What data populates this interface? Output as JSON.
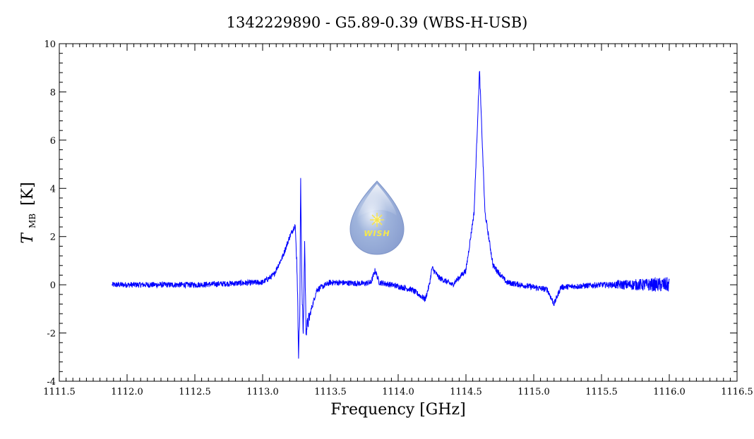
{
  "chart_data": {
    "type": "line",
    "title": "1342229890 - G5.89-0.39 (WBS-H-USB)",
    "xlabel": "Frequency [GHz]",
    "ylabel": {
      "symbol": "T",
      "subscript": "MB",
      "unit": "[K]"
    },
    "xlim": [
      1111.5,
      1116.5
    ],
    "ylim": [
      -4,
      10
    ],
    "x_ticks": [
      "1111.5",
      "1112.0",
      "1112.5",
      "1113.0",
      "1113.5",
      "1114.0",
      "1114.5",
      "1115.0",
      "1115.5",
      "1116.0",
      "1116.5"
    ],
    "y_ticks": [
      "-4",
      "-2",
      "0",
      "2",
      "4",
      "6",
      "8",
      "10"
    ],
    "grid": false,
    "series": [
      {
        "color": "#0000ff",
        "data_range": [
          1111.89,
          1116.0
        ],
        "points": [
          [
            1111.89,
            0.0
          ],
          [
            1112.5,
            0.0
          ],
          [
            1113.0,
            0.1
          ],
          [
            1113.08,
            0.4
          ],
          [
            1113.15,
            1.2
          ],
          [
            1113.2,
            2.0
          ],
          [
            1113.24,
            2.5
          ],
          [
            1113.255,
            0.5
          ],
          [
            1113.265,
            -2.8
          ],
          [
            1113.275,
            -1.0
          ],
          [
            1113.28,
            4.4
          ],
          [
            1113.29,
            0.0
          ],
          [
            1113.3,
            -2.2
          ],
          [
            1113.31,
            1.9
          ],
          [
            1113.32,
            -1.9
          ],
          [
            1113.36,
            -1.0
          ],
          [
            1113.4,
            -0.2
          ],
          [
            1113.5,
            0.1
          ],
          [
            1113.75,
            0.05
          ],
          [
            1113.8,
            0.1
          ],
          [
            1113.83,
            0.6
          ],
          [
            1113.86,
            0.1
          ],
          [
            1113.95,
            0.0
          ],
          [
            1114.1,
            -0.2
          ],
          [
            1114.2,
            -0.6
          ],
          [
            1114.23,
            0.0
          ],
          [
            1114.25,
            0.7
          ],
          [
            1114.3,
            0.3
          ],
          [
            1114.4,
            0.0
          ],
          [
            1114.5,
            0.6
          ],
          [
            1114.56,
            3.0
          ],
          [
            1114.6,
            8.9
          ],
          [
            1114.64,
            3.0
          ],
          [
            1114.7,
            0.8
          ],
          [
            1114.8,
            0.1
          ],
          [
            1115.1,
            -0.2
          ],
          [
            1115.15,
            -0.8
          ],
          [
            1115.2,
            -0.1
          ],
          [
            1115.5,
            0.0
          ],
          [
            1116.0,
            0.0
          ]
        ]
      }
    ],
    "logo": {
      "text": "WISH"
    }
  }
}
